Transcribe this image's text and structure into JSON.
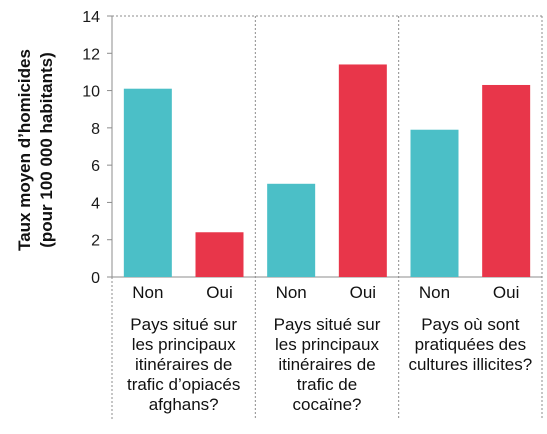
{
  "chart_data": {
    "type": "bar",
    "ylabel_lines": [
      "Taux moyen d’homicides",
      "(pour 100 000 habitants)"
    ],
    "ylim": [
      0,
      14
    ],
    "yticks": [
      0,
      2,
      4,
      6,
      8,
      10,
      12,
      14
    ],
    "grid": false,
    "colors": {
      "Non": "#4bbfc7",
      "Oui": "#e8364a"
    },
    "groups": [
      {
        "label_lines": [
          "Pays situé sur",
          "les principaux",
          "itinéraires de",
          "trafic d’opiacés",
          "afghans?"
        ],
        "bars": [
          {
            "category": "Non",
            "value": 10.1
          },
          {
            "category": "Oui",
            "value": 2.4
          }
        ]
      },
      {
        "label_lines": [
          "Pays situé sur",
          "les principaux",
          "itinéraires de",
          "trafic de",
          "cocaïne?"
        ],
        "bars": [
          {
            "category": "Non",
            "value": 5.0
          },
          {
            "category": "Oui",
            "value": 11.4
          }
        ]
      },
      {
        "label_lines": [
          "Pays où sont",
          "pratiquées des",
          "cultures illicites?"
        ],
        "bars": [
          {
            "category": "Non",
            "value": 7.9
          },
          {
            "category": "Oui",
            "value": 10.3
          }
        ]
      }
    ]
  }
}
